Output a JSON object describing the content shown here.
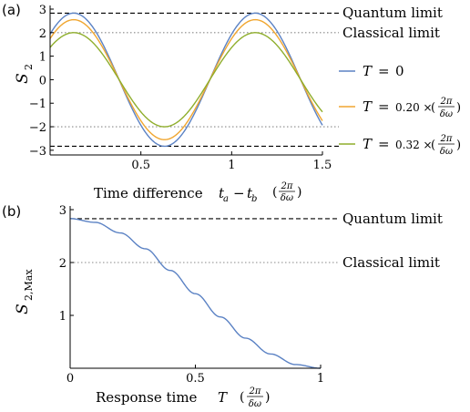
{
  "colors": {
    "axis": "#000000",
    "dashed": "#000000",
    "dotted": "#888888",
    "series": [
      "#5b82c4",
      "#f0a630",
      "#8fae2c"
    ]
  },
  "panel_a": {
    "label": "(a)",
    "ylabel_main": "S",
    "ylabel_sub": "2",
    "xlabel_text": "Time difference",
    "xlabel_math_a": "t",
    "xlabel_math_a_sub": "a",
    "xlabel_minus": "−",
    "xlabel_math_b": "t",
    "xlabel_math_b_sub": "b",
    "unit_num": "2π",
    "unit_den": "δω",
    "quantum_label": "Quantum limit",
    "classical_label": "Classical limit",
    "legend": [
      {
        "sym": "T",
        "eq": "=",
        "text": "0",
        "has_unit": false
      },
      {
        "sym": "T",
        "eq": "=",
        "text": "0.20 ×",
        "has_unit": true
      },
      {
        "sym": "T",
        "eq": "=",
        "text": "0.32 ×",
        "has_unit": true
      }
    ]
  },
  "panel_b": {
    "label": "(b)",
    "ylabel_main": "S",
    "ylabel_sub": "2,Max",
    "xlabel_text": "Response time",
    "xlabel_sym": "T",
    "unit_num": "2π",
    "unit_den": "δω",
    "quantum_label": "Quantum limit",
    "classical_label": "Classical limit"
  },
  "chart_data": [
    {
      "type": "line",
      "panel": "a",
      "xlabel": "Time difference t_a − t_b (2π/δω)",
      "ylabel": "S_2",
      "xlim": [
        0,
        1.5
      ],
      "ylim": [
        -3.2,
        3.0
      ],
      "xticks": [
        0.5,
        1,
        1.5
      ],
      "xtick_labels": [
        "0.5",
        "1",
        "1.5"
      ],
      "yticks": [
        3,
        2,
        1,
        0,
        -1,
        -2,
        -3
      ],
      "ytick_labels": [
        "3",
        "2",
        "1",
        "0",
        "−1",
        "−2",
        "−3"
      ],
      "hlines": [
        {
          "y": 2.828,
          "style": "dashed",
          "label": "Quantum limit"
        },
        {
          "y": 2,
          "style": "dotted",
          "label": "Classical limit"
        },
        {
          "y": -2,
          "style": "dotted"
        },
        {
          "y": -2.828,
          "style": "dashed"
        }
      ],
      "series": [
        {
          "name": "T = 0",
          "amplitude": 2.83,
          "period": 1.0,
          "peak_x": 0.13,
          "x": [
            0,
            0.13,
            0.38,
            0.63,
            0.88,
            1.13,
            1.38,
            1.5
          ],
          "y": [
            1.93,
            2.83,
            0.0,
            -2.83,
            0.0,
            2.83,
            0.0,
            -1.97
          ]
        },
        {
          "name": "T = 0.20 × (2π/δω)",
          "amplitude": 2.55,
          "period": 1.0,
          "peak_x": 0.13,
          "x": [
            0,
            0.13,
            0.38,
            0.63,
            0.88,
            1.13,
            1.38,
            1.5
          ],
          "y": [
            1.74,
            2.55,
            0.0,
            -2.55,
            0.0,
            2.55,
            0.0,
            -1.77
          ]
        },
        {
          "name": "T = 0.32 × (2π/δω)",
          "amplitude": 2.0,
          "period": 1.0,
          "peak_x": 0.13,
          "x": [
            0,
            0.13,
            0.38,
            0.63,
            0.88,
            1.13,
            1.38,
            1.5
          ],
          "y": [
            1.37,
            2.0,
            0.0,
            -2.0,
            0.0,
            2.0,
            0.0,
            -1.39
          ]
        }
      ]
    },
    {
      "type": "line",
      "panel": "b",
      "xlabel": "Response time T (2π/δω)",
      "ylabel": "S_2,Max",
      "xlim": [
        0,
        1
      ],
      "ylim": [
        0,
        3
      ],
      "xticks": [
        0,
        0.5,
        1
      ],
      "xtick_labels": [
        "0",
        "0.5",
        "1"
      ],
      "yticks": [
        3,
        2,
        1
      ],
      "ytick_labels": [
        "3",
        "2",
        "1"
      ],
      "hlines": [
        {
          "y": 2.828,
          "style": "dashed",
          "label": "Quantum limit"
        },
        {
          "y": 2,
          "style": "dotted",
          "label": "Classical limit"
        }
      ],
      "series": [
        {
          "x": [
            0,
            0.1,
            0.2,
            0.3,
            0.4,
            0.5,
            0.6,
            0.7,
            0.8,
            0.9,
            1.0
          ],
          "y": [
            2.83,
            2.76,
            2.56,
            2.26,
            1.85,
            1.41,
            0.97,
            0.57,
            0.27,
            0.07,
            0.0
          ]
        }
      ]
    }
  ]
}
